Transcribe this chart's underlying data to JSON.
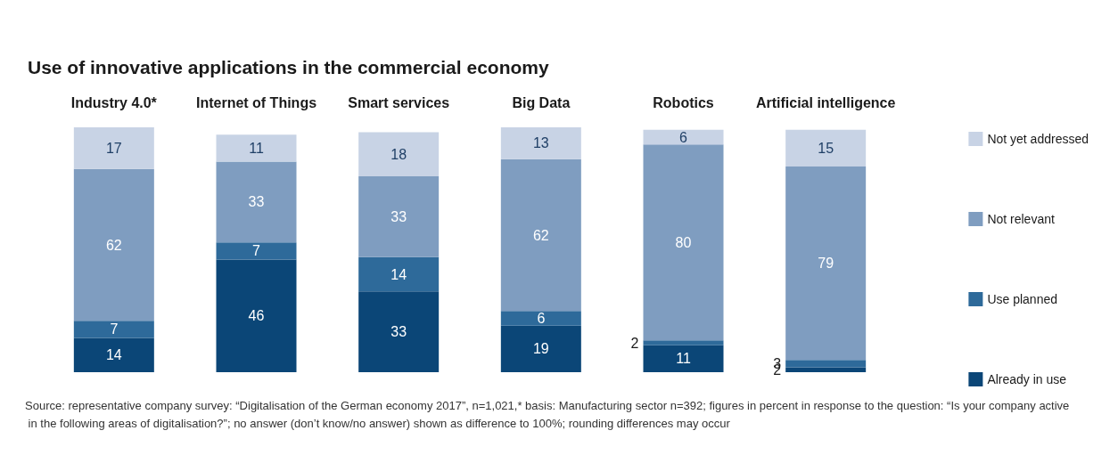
{
  "chart_data": {
    "type": "bar",
    "title": "Use of innovative applications in the commercial economy",
    "categories": [
      "Industry 4.0*",
      "Internet of Things",
      "Smart services",
      "Big Data",
      "Robotics",
      "Artificial intelligence"
    ],
    "stacked": true,
    "data_labels": true,
    "legend": "right",
    "grid": false,
    "ylim": [
      0,
      100
    ],
    "series": [
      {
        "name": "Already in use",
        "color": "#0b4677",
        "values": [
          14,
          46,
          33,
          19,
          11,
          2
        ]
      },
      {
        "name": "Use planned",
        "color": "#2e6a9a",
        "values": [
          7,
          7,
          14,
          6,
          2,
          3
        ]
      },
      {
        "name": "Not relevant",
        "color": "#7f9dc0",
        "values": [
          62,
          33,
          33,
          62,
          80,
          79
        ]
      },
      {
        "name": "Not yet addressed",
        "color": "#c8d3e5",
        "values": [
          17,
          11,
          18,
          13,
          6,
          15
        ]
      }
    ],
    "annotations": [
      "Source: representative company survey: “Digitalisation of the German economy 2017”, n=1,021,* basis: Manufacturing sector n=392; figures in percent in response to the question: “Is your company active in the following areas of digitalisation?”; no answer (don’t know/no answer) shown as difference to 100%; rounding differences may occur"
    ]
  }
}
